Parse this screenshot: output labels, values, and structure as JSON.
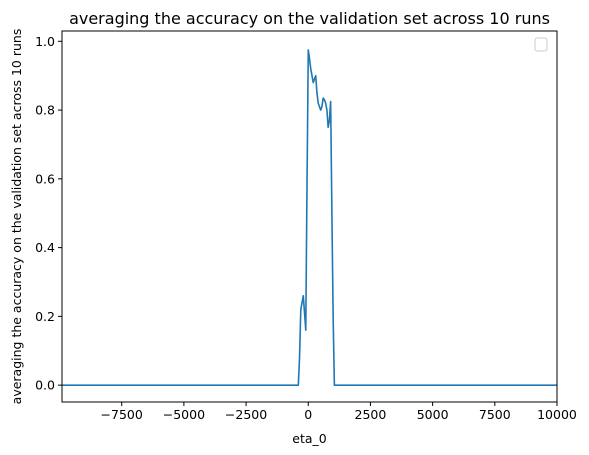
{
  "chart_data": {
    "type": "line",
    "title": "averaging the accuracy on the validation set across 10 runs",
    "xlabel": "eta_0",
    "ylabel": "averaging the accuracy on the validation set across 10 runs",
    "xlim": [
      -9900,
      10000
    ],
    "ylim": [
      -0.049,
      1.03
    ],
    "x_ticks": [
      -7500,
      -5000,
      -2500,
      0,
      2500,
      5000,
      7500,
      10000
    ],
    "x_tick_labels": [
      "−7500",
      "−5000",
      "−2500",
      "0",
      "2500",
      "5000",
      "7500",
      "10000"
    ],
    "y_ticks": [
      0.0,
      0.2,
      0.4,
      0.6,
      0.8,
      1.0
    ],
    "y_tick_labels": [
      "0.0",
      "0.2",
      "0.4",
      "0.6",
      "0.8",
      "1.0"
    ],
    "grid": false,
    "legend": "top-right",
    "colors": {
      "series": "#1f77b4"
    },
    "series": [
      {
        "values": [
          [
            -9900,
            0.0
          ],
          [
            -400,
            0.0
          ],
          [
            -350,
            0.08
          ],
          [
            -300,
            0.22
          ],
          [
            -250,
            0.24
          ],
          [
            -200,
            0.26
          ],
          [
            -150,
            0.21
          ],
          [
            -100,
            0.16
          ],
          [
            -60,
            0.5
          ],
          [
            0,
            0.975
          ],
          [
            50,
            0.95
          ],
          [
            100,
            0.92
          ],
          [
            150,
            0.9
          ],
          [
            200,
            0.88
          ],
          [
            250,
            0.89
          ],
          [
            300,
            0.9
          ],
          [
            350,
            0.85
          ],
          [
            400,
            0.82
          ],
          [
            450,
            0.81
          ],
          [
            500,
            0.8
          ],
          [
            550,
            0.81
          ],
          [
            600,
            0.835
          ],
          [
            650,
            0.83
          ],
          [
            700,
            0.82
          ],
          [
            750,
            0.8
          ],
          [
            800,
            0.75
          ],
          [
            850,
            0.77
          ],
          [
            900,
            0.825
          ],
          [
            950,
            0.5
          ],
          [
            1000,
            0.2
          ],
          [
            1050,
            0.0
          ],
          [
            10000,
            0.0
          ]
        ]
      }
    ]
  }
}
